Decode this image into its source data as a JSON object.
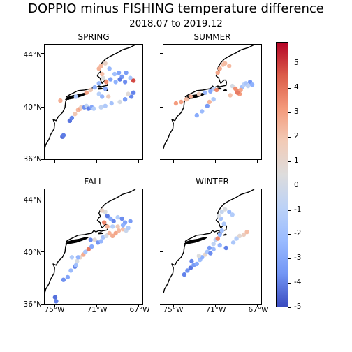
{
  "title": "DOPPIO minus FISHING temperature difference",
  "subtitle": "2018.07 to 2019.12",
  "panels": [
    {
      "name": "SPRING"
    },
    {
      "name": "SUMMER"
    },
    {
      "name": "FALL"
    },
    {
      "name": "WINTER"
    }
  ],
  "lat_labels": [
    "44°N",
    "40°N",
    "36°N"
  ],
  "lon_labels": [
    "75°W",
    "71°W",
    "67°W"
  ],
  "colorbar": {
    "ticks": [
      "5",
      "4",
      "3",
      "2",
      "1",
      "0",
      "-1",
      "-2",
      "-3",
      "-4",
      "-5"
    ],
    "min": -5.0,
    "max": 5.9,
    "colormap": "coolwarm",
    "low_color": "#3b4cc0",
    "mid_color": "#dddcdc",
    "high_color": "#b40426"
  },
  "chart_data": {
    "type": "scatter",
    "extent": {
      "lon": [
        -76.0,
        -66.5
      ],
      "lat": [
        36.0,
        44.7
      ]
    },
    "series": [
      {
        "panel": "SPRING",
        "points": [
          [
            -74.3,
            37.8,
            -4.3
          ],
          [
            -74.2,
            37.9,
            -3.8
          ],
          [
            -73.6,
            39.0,
            -4.0
          ],
          [
            -73.4,
            39.2,
            -3.5
          ],
          [
            -73.1,
            39.5,
            1.6
          ],
          [
            -72.8,
            39.8,
            2.2
          ],
          [
            -72.6,
            39.9,
            2.8
          ],
          [
            -72.5,
            40.0,
            1.2
          ],
          [
            -72.2,
            40.0,
            -3.2
          ],
          [
            -72.0,
            40.1,
            -0.6
          ],
          [
            -71.8,
            39.9,
            -3.7
          ],
          [
            -71.5,
            40.0,
            -2.6
          ],
          [
            -71.3,
            39.9,
            -1.0
          ],
          [
            -70.6,
            40.0,
            -0.6
          ],
          [
            -70.2,
            40.1,
            -1.2
          ],
          [
            -69.6,
            40.3,
            -1.5
          ],
          [
            -68.8,
            40.4,
            0.1
          ],
          [
            -68.3,
            40.6,
            -2.8
          ],
          [
            -67.7,
            40.8,
            -3.5
          ],
          [
            -67.5,
            41.1,
            -3.6
          ],
          [
            -74.5,
            40.5,
            2.5
          ],
          [
            -73.0,
            40.8,
            -1.4
          ],
          [
            -72.0,
            41.1,
            2.9
          ],
          [
            -71.6,
            41.3,
            1.5
          ],
          [
            -71.2,
            41.5,
            -2.1
          ],
          [
            -70.8,
            41.0,
            -0.9
          ],
          [
            -70.5,
            40.8,
            -2.0
          ],
          [
            -70.2,
            41.4,
            -2.6
          ],
          [
            -70.8,
            41.8,
            -1.9
          ],
          [
            -70.4,
            42.2,
            0.5
          ],
          [
            -70.5,
            42.5,
            1.9
          ],
          [
            -70.8,
            42.9,
            2.4
          ],
          [
            -70.6,
            43.1,
            2.2
          ],
          [
            -70.2,
            43.3,
            1.1
          ],
          [
            -69.8,
            42.9,
            -1.9
          ],
          [
            -69.3,
            42.5,
            -1.6
          ],
          [
            -68.9,
            42.6,
            -2.6
          ],
          [
            -68.6,
            42.3,
            -3.0
          ],
          [
            -68.2,
            42.6,
            -2.8
          ],
          [
            -67.8,
            42.2,
            -1.4
          ],
          [
            -67.5,
            42.0,
            4.9
          ],
          [
            -68.3,
            41.9,
            -3.3
          ],
          [
            -69.2,
            41.9,
            -2.2
          ],
          [
            -69.7,
            42.1,
            -2.7
          ],
          [
            -68.8,
            42.1,
            -3.8
          ],
          [
            -68.0,
            41.0,
            0.6
          ],
          [
            -69.9,
            40.8,
            1.4
          ],
          [
            -70.1,
            41.9,
            3.4
          ]
        ]
      },
      {
        "panel": "SUMMER",
        "points": [
          [
            -74.8,
            40.3,
            3.1
          ],
          [
            -74.3,
            40.4,
            2.9
          ],
          [
            -73.8,
            40.6,
            2.0
          ],
          [
            -73.4,
            40.8,
            2.5
          ],
          [
            -72.6,
            41.0,
            1.4
          ],
          [
            -72.0,
            41.1,
            -1.9
          ],
          [
            -71.5,
            41.2,
            -2.5
          ],
          [
            -71.2,
            41.4,
            -0.8
          ],
          [
            -70.9,
            41.3,
            3.6
          ],
          [
            -72.8,
            39.4,
            -2.4
          ],
          [
            -72.3,
            39.7,
            -1.8
          ],
          [
            -71.8,
            40.1,
            -2.9
          ],
          [
            -71.6,
            40.4,
            2.3
          ],
          [
            -71.2,
            40.6,
            -1.3
          ],
          [
            -70.8,
            42.6,
            2.8
          ],
          [
            -70.6,
            42.9,
            2.6
          ],
          [
            -70.3,
            43.2,
            1.9
          ],
          [
            -70.1,
            43.3,
            2.1
          ],
          [
            -69.7,
            43.1,
            2.2
          ],
          [
            -69.4,
            41.6,
            0.1
          ],
          [
            -69.1,
            41.4,
            3.4
          ],
          [
            -68.9,
            41.2,
            3.5
          ],
          [
            -68.7,
            41.0,
            3.1
          ],
          [
            -68.5,
            41.5,
            -1.6
          ],
          [
            -68.3,
            41.7,
            -0.9
          ],
          [
            -68.1,
            41.8,
            -1.4
          ],
          [
            -67.9,
            41.6,
            -0.6
          ],
          [
            -67.7,
            41.9,
            -3.0
          ],
          [
            -67.5,
            41.7,
            -2.2
          ],
          [
            -68.6,
            41.3,
            2.8
          ],
          [
            -69.6,
            40.9,
            1.8
          ],
          [
            -68.9,
            41.1,
            3.9
          ]
        ]
      },
      {
        "panel": "FALL",
        "points": [
          [
            -75.0,
            36.6,
            -4.1
          ],
          [
            -74.9,
            36.3,
            -3.7
          ],
          [
            -74.2,
            37.9,
            -3.2
          ],
          [
            -73.8,
            38.1,
            -2.6
          ],
          [
            -73.5,
            38.6,
            -1.8
          ],
          [
            -73.1,
            38.9,
            -3.5
          ],
          [
            -72.9,
            39.3,
            0.2
          ],
          [
            -72.6,
            39.6,
            0.9
          ],
          [
            -72.3,
            39.8,
            2.6
          ],
          [
            -72.8,
            39.6,
            -2.1
          ],
          [
            -72.1,
            40.0,
            -1.4
          ],
          [
            -71.8,
            40.2,
            3.9
          ],
          [
            -71.5,
            40.4,
            -2.5
          ],
          [
            -71.6,
            40.9,
            -3.4
          ],
          [
            -71.2,
            40.9,
            0.7
          ],
          [
            -70.9,
            40.7,
            -3.1
          ],
          [
            -70.6,
            40.8,
            -2.0
          ],
          [
            -70.4,
            41.1,
            -1.5
          ],
          [
            -70.1,
            41.2,
            0.1
          ],
          [
            -69.8,
            41.4,
            2.4
          ],
          [
            -69.5,
            41.2,
            2.6
          ],
          [
            -69.2,
            41.4,
            2.8
          ],
          [
            -68.9,
            41.6,
            2.2
          ],
          [
            -68.5,
            41.7,
            1.9
          ],
          [
            -68.2,
            41.6,
            -0.3
          ],
          [
            -68.0,
            41.8,
            -1.1
          ],
          [
            -68.3,
            42.2,
            -2.7
          ],
          [
            -68.6,
            42.5,
            -3.3
          ],
          [
            -69.0,
            42.6,
            -1.0
          ],
          [
            -69.4,
            42.3,
            -3.6
          ],
          [
            -69.7,
            42.5,
            -2.4
          ],
          [
            -70.0,
            42.7,
            -3.8
          ],
          [
            -70.2,
            43.0,
            0.4
          ],
          [
            -70.5,
            43.1,
            1.1
          ],
          [
            -70.3,
            42.2,
            3.7
          ],
          [
            -70.0,
            41.9,
            2.3
          ],
          [
            -69.5,
            41.9,
            -0.9
          ],
          [
            -69.0,
            41.9,
            1.5
          ],
          [
            -68.5,
            42.0,
            -2.2
          ],
          [
            -67.8,
            42.3,
            -2.9
          ],
          [
            -73.4,
            39.6,
            -1.1
          ],
          [
            -73.0,
            39.0,
            -1.6
          ]
        ]
      },
      {
        "panel": "WINTER",
        "points": [
          [
            -74.0,
            38.3,
            -3.6
          ],
          [
            -73.7,
            38.6,
            -3.2
          ],
          [
            -73.4,
            38.8,
            -3.9
          ],
          [
            -73.1,
            39.0,
            -2.9
          ],
          [
            -72.8,
            39.1,
            -2.4
          ],
          [
            -73.3,
            39.3,
            -3.5
          ],
          [
            -72.5,
            39.4,
            -1.7
          ],
          [
            -72.3,
            39.6,
            -2.2
          ],
          [
            -72.6,
            39.7,
            0.4
          ],
          [
            -72.0,
            39.8,
            0.9
          ],
          [
            -71.8,
            40.0,
            -1.4
          ],
          [
            -71.5,
            39.9,
            -3.3
          ],
          [
            -71.2,
            40.2,
            -1.8
          ],
          [
            -71.6,
            40.3,
            -2.9
          ],
          [
            -71.2,
            40.6,
            -0.6
          ],
          [
            -71.0,
            40.9,
            -0.8
          ],
          [
            -70.8,
            41.0,
            3.7
          ],
          [
            -70.6,
            40.5,
            -2.0
          ],
          [
            -70.0,
            40.3,
            -3.7
          ],
          [
            -69.3,
            40.7,
            -1.3
          ],
          [
            -69.0,
            41.0,
            -1.0
          ],
          [
            -68.7,
            41.2,
            0.8
          ],
          [
            -68.3,
            41.3,
            1.3
          ],
          [
            -68.0,
            41.5,
            2.0
          ],
          [
            -70.6,
            41.3,
            -2.1
          ],
          [
            -70.4,
            41.6,
            -1.6
          ],
          [
            -70.2,
            42.1,
            -1.3
          ],
          [
            -70.5,
            42.5,
            -1.5
          ],
          [
            -70.7,
            42.7,
            0.2
          ],
          [
            -70.4,
            43.0,
            -0.4
          ],
          [
            -70.1,
            43.2,
            0.3
          ],
          [
            -69.7,
            43.0,
            -1.8
          ],
          [
            -69.4,
            42.8,
            -1.1
          ]
        ]
      }
    ]
  }
}
